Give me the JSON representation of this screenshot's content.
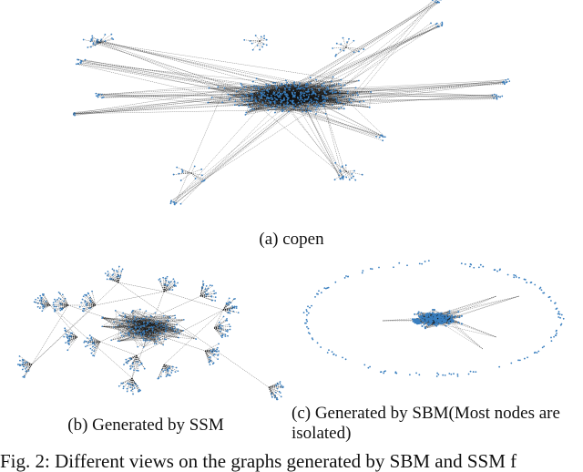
{
  "figure": {
    "subfigures": [
      {
        "id": "a",
        "caption": "(a) copen",
        "description": "Network graph drawing of the copen dataset: dense central core with many radiating edges and star-shaped clusters",
        "node_color": "#3a7fbf",
        "edge_color": "#111111"
      },
      {
        "id": "b",
        "caption": "(b) Generated by SSM",
        "description": "Graph generated by SSM: many fan/star clusters connected by long edges",
        "node_color": "#3a7fbf",
        "edge_color": "#111111"
      },
      {
        "id": "c",
        "caption": "(c) Generated by SBM(Most nodes are isolated)",
        "description": "Graph generated by SBM: a small dense central cluster surrounded by an ellipse of isolated nodes",
        "node_color": "#3a7fbf",
        "edge_color": "#111111"
      }
    ],
    "main_caption": "Fig. 2: Different views on the graphs generated by SBM and SSM f"
  }
}
